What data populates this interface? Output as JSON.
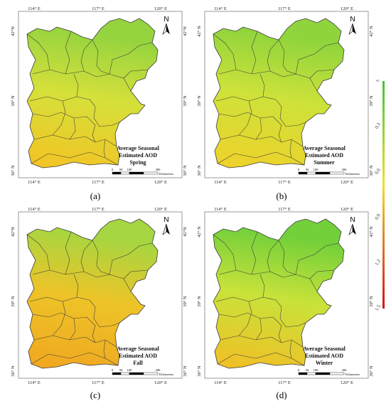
{
  "panels": [
    {
      "id": "a",
      "label": "(a)",
      "title": [
        "Average Seasonal",
        "Estimated AOD",
        "Spring"
      ],
      "fill": "spring",
      "lon_ticks": [
        "114° E",
        "117° E",
        "120° E"
      ],
      "lat_ticks": [
        "42°N",
        "39° N",
        "36° N"
      ]
    },
    {
      "id": "b",
      "label": "(b)",
      "title": [
        "Average Seasonal",
        "Estimated AOD",
        "Summer"
      ],
      "fill": "summer",
      "lon_ticks": [
        "114° E",
        "117° E",
        "120° E"
      ],
      "lat_ticks": [
        "42° N",
        "39° N",
        "36° N"
      ]
    },
    {
      "id": "c",
      "label": "(c)",
      "title": [
        "Average Seasonal",
        "Estimated AOD",
        "Fall"
      ],
      "fill": "fall",
      "lon_ticks": [
        "114° E",
        "117° E",
        "120° E"
      ],
      "lat_ticks": [
        "42°N",
        "39° N",
        "36° N"
      ]
    },
    {
      "id": "d",
      "label": "(d)",
      "title": [
        "Average Seasonal",
        "Estimated AOD",
        "Winter"
      ],
      "fill": "winter",
      "lon_ticks": [
        "114° E",
        "117° E",
        "120° E"
      ],
      "lat_ticks": [
        "42° N",
        "39° N",
        "36° N"
      ]
    }
  ],
  "north_label": "N",
  "scale": {
    "ticks": [
      "0",
      "50",
      "100",
      "200"
    ],
    "unit": "Kilometers"
  },
  "legend": {
    "labels": [
      "0",
      "0.3",
      "0.6",
      "0.9",
      "1.2",
      "1.5"
    ],
    "colors": {
      "low": "#3fc63a",
      "mid": "#f0e02a",
      "high": "#d40f1b"
    }
  },
  "palette": {
    "spring": {
      "n": "#96d43f",
      "m": "#d6e03a",
      "s": "#f2c424"
    },
    "summer": {
      "n": "#8fd43c",
      "m": "#cde23a",
      "s": "#eed22a"
    },
    "fall": {
      "n": "#a6d641",
      "m": "#edc428",
      "s": "#f0a820"
    },
    "winter": {
      "n": "#73d03a",
      "m": "#c9e23a",
      "s": "#f0c026"
    },
    "border": "#3a3a3a"
  }
}
